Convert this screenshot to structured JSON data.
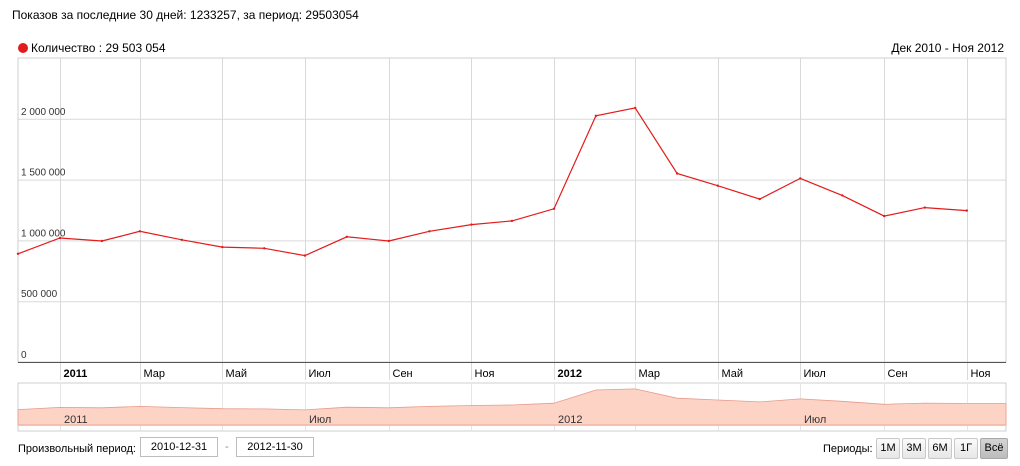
{
  "header": {
    "summary": "Показов за последние 30 дней: 1233257, за период: 29503054",
    "legend_label": "Количество : 29 503 054",
    "range_label": "Дек 2010 - Ноя 2012"
  },
  "colors": {
    "series": "#e31b1b",
    "navigator_fill": "#fcd3c5",
    "grid": "#d9d9d9"
  },
  "chart_data": {
    "type": "line",
    "y_ticks": [
      "0",
      "500 000",
      "1 000 000",
      "1 500 000",
      "2 000 000"
    ],
    "y_tick_values": [
      0,
      500000,
      1000000,
      1500000,
      2000000
    ],
    "ylim": [
      0,
      2500000
    ],
    "x_range": [
      "2010-12-01",
      "2012-11-30"
    ],
    "x_ticks": [
      {
        "label": "2011",
        "date": "2011-01-01",
        "bold": true
      },
      {
        "label": "Мар",
        "date": "2011-03-01"
      },
      {
        "label": "Май",
        "date": "2011-05-01"
      },
      {
        "label": "Июл",
        "date": "2011-07-01"
      },
      {
        "label": "Сен",
        "date": "2011-09-01"
      },
      {
        "label": "Ноя",
        "date": "2011-11-01"
      },
      {
        "label": "2012",
        "date": "2012-01-01",
        "bold": true
      },
      {
        "label": "Мар",
        "date": "2012-03-01"
      },
      {
        "label": "Май",
        "date": "2012-05-01"
      },
      {
        "label": "Июл",
        "date": "2012-07-01"
      },
      {
        "label": "Сен",
        "date": "2012-09-01"
      },
      {
        "label": "Ноя",
        "date": "2012-11-01"
      }
    ],
    "navigator_labels": [
      {
        "label": "2011",
        "date": "2011-01-01"
      },
      {
        "label": "Июл",
        "date": "2011-07-01"
      },
      {
        "label": "2012",
        "date": "2012-01-01"
      },
      {
        "label": "Июл",
        "date": "2012-07-01"
      }
    ],
    "series": [
      {
        "name": "Количество",
        "points": [
          [
            "2010-12-01",
            890000
          ],
          [
            "2011-01-01",
            1020000
          ],
          [
            "2011-02-01",
            995000
          ],
          [
            "2011-03-01",
            1075000
          ],
          [
            "2011-04-01",
            1005000
          ],
          [
            "2011-05-01",
            945000
          ],
          [
            "2011-06-01",
            935000
          ],
          [
            "2011-07-01",
            875000
          ],
          [
            "2011-08-01",
            1030000
          ],
          [
            "2011-09-01",
            995000
          ],
          [
            "2011-10-01",
            1075000
          ],
          [
            "2011-11-01",
            1130000
          ],
          [
            "2011-12-01",
            1160000
          ],
          [
            "2012-01-01",
            1260000
          ],
          [
            "2012-02-01",
            2025000
          ],
          [
            "2012-03-01",
            2090000
          ],
          [
            "2012-04-01",
            1550000
          ],
          [
            "2012-05-01",
            1450000
          ],
          [
            "2012-06-01",
            1340000
          ],
          [
            "2012-07-01",
            1510000
          ],
          [
            "2012-08-01",
            1370000
          ],
          [
            "2012-09-01",
            1200000
          ],
          [
            "2012-10-01",
            1270000
          ],
          [
            "2012-11-01",
            1245000
          ]
        ]
      }
    ]
  },
  "controls": {
    "period_label": "Произвольный период:",
    "date_from": "2010-12-31",
    "date_separator": "-",
    "date_to": "2012-11-30",
    "periods_label": "Периоды:",
    "buttons": [
      {
        "label": "1М",
        "active": false
      },
      {
        "label": "3М",
        "active": false
      },
      {
        "label": "6М",
        "active": false
      },
      {
        "label": "1Г",
        "active": false
      },
      {
        "label": "Всё",
        "active": true
      }
    ]
  }
}
